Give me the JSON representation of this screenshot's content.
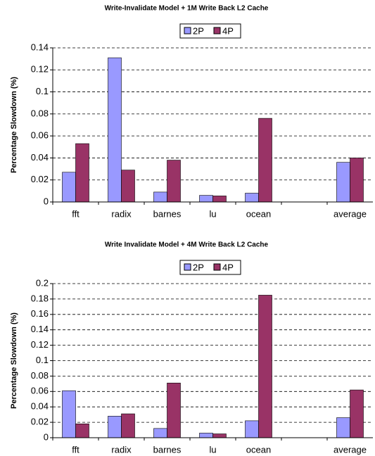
{
  "chart_data": [
    {
      "type": "bar",
      "title": "Write-Invalidate Model + 1M Write Back L2 Cache",
      "ylabel": "Percentage Slowdown (%)",
      "categories": [
        "fft",
        "radix",
        "barnes",
        "lu",
        "ocean",
        null,
        "average"
      ],
      "series": [
        {
          "name": "2P",
          "color": "#9999ff",
          "values": [
            0.027,
            0.131,
            0.009,
            0.006,
            0.008,
            null,
            0.036
          ]
        },
        {
          "name": "4P",
          "color": "#993366",
          "values": [
            0.053,
            0.029,
            0.038,
            0.0055,
            0.076,
            null,
            0.04
          ]
        }
      ],
      "ylim": [
        0,
        0.14
      ],
      "yticks": [
        0,
        0.02,
        0.04,
        0.06,
        0.08,
        0.1,
        0.12,
        0.14
      ],
      "grid": true,
      "legend": "top"
    },
    {
      "type": "bar",
      "title": "Write Invalidate Model + 4M Write Back L2 Cache",
      "ylabel": "Percentage Slowdown (%)",
      "categories": [
        "fft",
        "radix",
        "barnes",
        "lu",
        "ocean",
        null,
        "average"
      ],
      "series": [
        {
          "name": "2P",
          "color": "#9999ff",
          "values": [
            0.061,
            0.028,
            0.012,
            0.006,
            0.022,
            null,
            0.026
          ]
        },
        {
          "name": "4P",
          "color": "#993366",
          "values": [
            0.018,
            0.031,
            0.071,
            0.005,
            0.185,
            null,
            0.062
          ]
        }
      ],
      "ylim": [
        0,
        0.2
      ],
      "yticks": [
        0,
        0.02,
        0.04,
        0.06,
        0.08,
        0.1,
        0.12,
        0.14,
        0.16,
        0.18,
        0.2
      ],
      "grid": true,
      "legend": "top"
    }
  ]
}
